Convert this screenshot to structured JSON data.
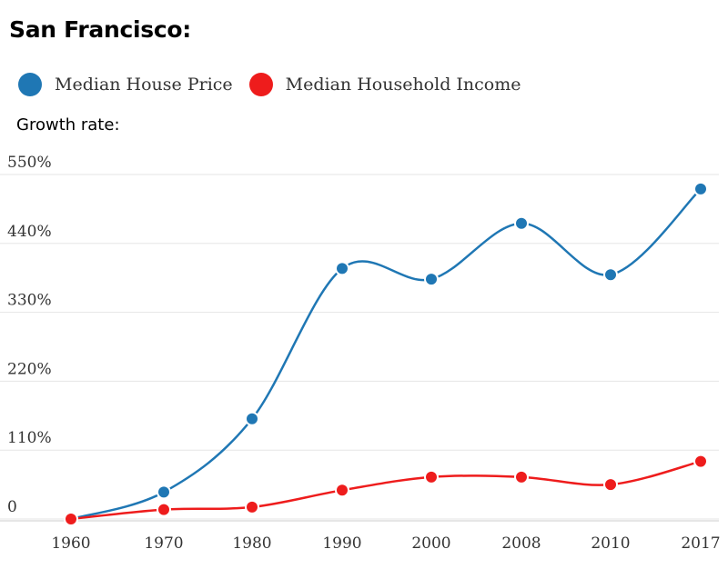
{
  "title": "San Francisco:",
  "subtitle": "Growth rate:",
  "colors": {
    "house": "#1f77b4",
    "income": "#ee1c1c"
  },
  "chart_data": {
    "type": "line",
    "categories": [
      "1960",
      "1970",
      "1980",
      "1990",
      "2000",
      "2008",
      "2010",
      "2017"
    ],
    "series": [
      {
        "name": "Median House Price",
        "color": "#1f77b4",
        "values": [
          0,
          43,
          160,
          400,
          383,
          472,
          390,
          527
        ]
      },
      {
        "name": "Median Household Income",
        "color": "#ee1c1c",
        "values": [
          0,
          15,
          19,
          46,
          67,
          67,
          55,
          92
        ]
      }
    ],
    "ylim": [
      0,
      550
    ],
    "yticks": [
      0,
      110,
      220,
      330,
      440,
      550
    ],
    "ytick_labels": [
      "0",
      "110%",
      "220%",
      "330%",
      "440%",
      "550%"
    ],
    "grid": true,
    "legend_position": "top-left"
  }
}
